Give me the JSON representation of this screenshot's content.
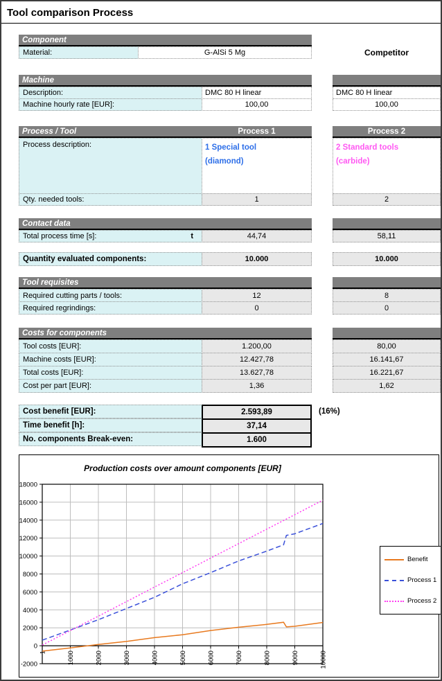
{
  "page": {
    "title": "Tool comparison Process"
  },
  "component": {
    "header": "Component",
    "material_label": "Material:",
    "material_value": "G-AlSi 5 Mg",
    "competitor_label": "Competitor"
  },
  "machine": {
    "header": "Machine",
    "desc_label": "Description:",
    "desc_p1": "DMC 80 H linear",
    "desc_p2": "DMC 80 H linear",
    "rate_label": "Machine hourly rate [EUR]:",
    "rate_p1": "100,00",
    "rate_p2": "100,00"
  },
  "process": {
    "header": "Process / Tool",
    "p1_header": "Process 1",
    "p2_header": "Process 2",
    "desc_label": "Process description:",
    "p1_desc": [
      "1 Special tool",
      "(diamond)"
    ],
    "p2_desc": [
      "2 Standard tools",
      "(carbide)"
    ],
    "qty_label": "Qty. needed tools:",
    "qty_p1": "1",
    "qty_p2": "2"
  },
  "contact": {
    "header": "Contact data",
    "time_label": "Total process time [s]:",
    "time_symbol": "t",
    "time_p1": "44,74",
    "time_p2": "58,11"
  },
  "quantity": {
    "label": "Quantity evaluated components:",
    "p1": "10.000",
    "p2": "10.000"
  },
  "requisites": {
    "header": "Tool requisites",
    "cutting_label": "Required cutting parts / tools:",
    "cutting_p1": "12",
    "cutting_p2": "8",
    "regrind_label": "Required regrindings:",
    "regrind_p1": "0",
    "regrind_p2": "0"
  },
  "costs": {
    "header": "Costs for components",
    "rows": [
      {
        "label": "Tool costs [EUR]:",
        "p1": "1.200,00",
        "p2": "80,00"
      },
      {
        "label": "Machine costs [EUR]:",
        "p1": "12.427,78",
        "p2": "16.141,67"
      },
      {
        "label": "Total costs [EUR]:",
        "p1": "13.627,78",
        "p2": "16.221,67"
      },
      {
        "label": "Cost per part [EUR]:",
        "p1": "1,36",
        "p2": "1,62"
      }
    ]
  },
  "summary": {
    "rows": [
      {
        "label": "Cost benefit [EUR]:",
        "value": "2.593,89"
      },
      {
        "label": "Time benefit [h]:",
        "value": "37,14"
      },
      {
        "label": "No. components Break-even:",
        "value": "1.600"
      }
    ],
    "note": "(16%)"
  },
  "chart_data": {
    "type": "line",
    "title": "Production costs over amount components [EUR]",
    "xlabel": "",
    "ylabel": "",
    "x_min": 0,
    "x_max": 10000,
    "y_min": -2000,
    "y_max": 18000,
    "y_step": 2000,
    "grid": true,
    "legend_position": "right",
    "x_ticks": [
      [
        1,
        "1"
      ],
      [
        1000,
        "1000"
      ],
      [
        2000,
        "2000"
      ],
      [
        3000,
        "3000"
      ],
      [
        4000,
        "4000"
      ],
      [
        5000,
        "5000"
      ],
      [
        6000,
        "6000"
      ],
      [
        7000,
        "7000"
      ],
      [
        8000,
        "8000"
      ],
      [
        9000,
        "9000"
      ],
      [
        10000,
        "10000"
      ]
    ],
    "series": [
      {
        "name": "Benefit",
        "color": "#E8791E",
        "style": "solid",
        "points": [
          [
            1,
            -600
          ],
          [
            1000,
            -250
          ],
          [
            2000,
            150
          ],
          [
            3000,
            480
          ],
          [
            4000,
            900
          ],
          [
            5000,
            1230
          ],
          [
            6000,
            1700
          ],
          [
            7000,
            2060
          ],
          [
            8000,
            2380
          ],
          [
            8600,
            2620
          ],
          [
            8700,
            2100
          ],
          [
            9000,
            2170
          ],
          [
            10000,
            2594
          ]
        ]
      },
      {
        "name": "Process 1",
        "color": "#3A50D9",
        "style": "dashed",
        "points": [
          [
            1,
            620
          ],
          [
            1000,
            1750
          ],
          [
            2000,
            2900
          ],
          [
            3000,
            4150
          ],
          [
            4000,
            5400
          ],
          [
            5000,
            6900
          ],
          [
            6000,
            8150
          ],
          [
            7000,
            9450
          ],
          [
            8000,
            10550
          ],
          [
            8600,
            11250
          ],
          [
            8700,
            12300
          ],
          [
            9000,
            12480
          ],
          [
            10000,
            13628
          ]
        ]
      },
      {
        "name": "Process 2",
        "color": "#FF3DF2",
        "style": "dotted",
        "points": [
          [
            1,
            80
          ],
          [
            1000,
            1690
          ],
          [
            2000,
            3300
          ],
          [
            3000,
            4920
          ],
          [
            4000,
            6540
          ],
          [
            5000,
            8150
          ],
          [
            6000,
            9770
          ],
          [
            7000,
            11380
          ],
          [
            8000,
            13000
          ],
          [
            8600,
            13960
          ],
          [
            8700,
            14120
          ],
          [
            9000,
            14610
          ],
          [
            10000,
            16222
          ]
        ]
      }
    ]
  }
}
